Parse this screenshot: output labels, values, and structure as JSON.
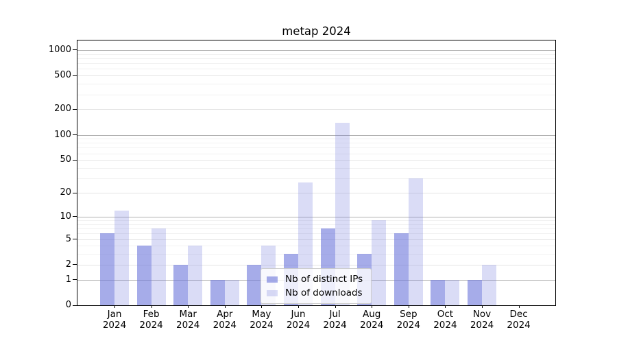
{
  "chart_data": {
    "type": "bar",
    "title": "metap 2024",
    "categories": [
      "Jan 2024",
      "Feb 2024",
      "Mar 2024",
      "Apr 2024",
      "May 2024",
      "Jun 2024",
      "Jul 2024",
      "Aug 2024",
      "Sep 2024",
      "Oct 2024",
      "Nov 2024",
      "Dec 2024"
    ],
    "series": [
      {
        "name": "Nb of distinct IPs",
        "color": "rgba(106,117,218,0.6)",
        "values": [
          6,
          4,
          2,
          1,
          2,
          3,
          7,
          3,
          6,
          1,
          1,
          0
        ]
      },
      {
        "name": "Nb of downloads",
        "color": "rgba(106,117,218,0.25)",
        "values": [
          12,
          7,
          4,
          1,
          4,
          27,
          140,
          9,
          30,
          1,
          2,
          0
        ]
      }
    ],
    "xlabel": "",
    "ylabel": "",
    "yscale": "log1p",
    "ylim": [
      0,
      1300
    ],
    "yticks": [
      0,
      1,
      2,
      5,
      10,
      20,
      50,
      100,
      200,
      500,
      1000
    ],
    "minor_gridlines": [
      3,
      4,
      6,
      7,
      8,
      9,
      30,
      40,
      60,
      70,
      80,
      90,
      300,
      400,
      600,
      700,
      800,
      900
    ],
    "grid": true,
    "legend_position": "lower center",
    "colors": {
      "bar_base": "#6a75da",
      "grid_major": "#b0b0b0",
      "grid_labeled": "#e4e4e4",
      "grid_minor": "#f1f1f1"
    }
  }
}
